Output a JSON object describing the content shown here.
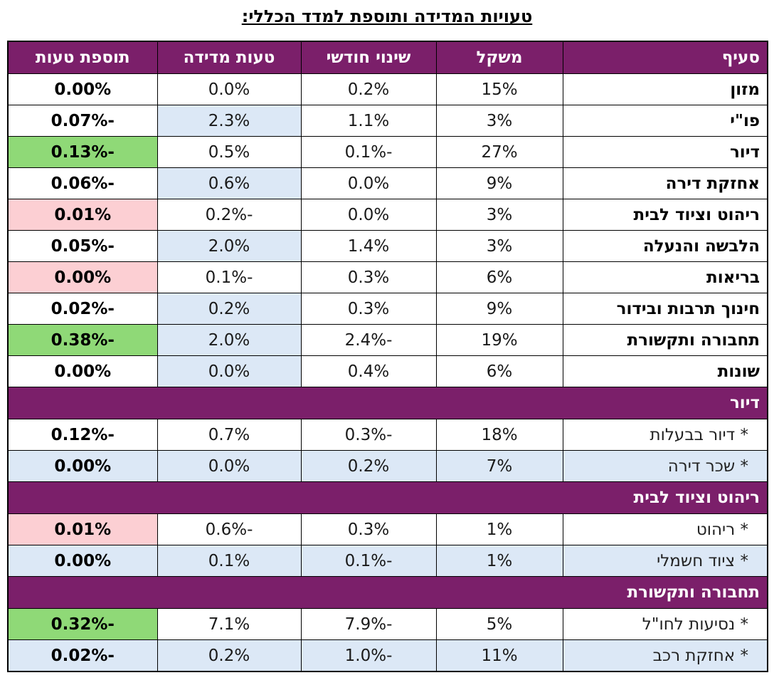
{
  "title": "טעויות המדידה ותוספת למדד הכללי:",
  "headers": {
    "item": "סעיף",
    "weight": "משקל",
    "monthly_change": "שינוי חודשי",
    "measurement_error": "טעות מדידה",
    "error_addition": "תוספת טעות"
  },
  "colors": {
    "header_bg": "#7b1f6a",
    "row_blue": "#dce8f6",
    "highlight_green": "#8fd977",
    "highlight_pink": "#fccfd3"
  },
  "rows": [
    {
      "item": "מזון",
      "weight": "15%",
      "change": "0.2%",
      "error": "0.0%",
      "addition": "0.00%",
      "err_bg": "w",
      "add_bg": "none"
    },
    {
      "item": "פו\"י",
      "weight": "3%",
      "change": "1.1%",
      "error": "2.3%",
      "addition": "-0.07%",
      "err_bg": "b",
      "add_bg": "none"
    },
    {
      "item": "דיור",
      "weight": "27%",
      "change": "-0.1%",
      "error": "0.5%",
      "addition": "-0.13%",
      "err_bg": "w",
      "add_bg": "green"
    },
    {
      "item": "אחזקת דירה",
      "weight": "9%",
      "change": "0.0%",
      "error": "0.6%",
      "addition": "-0.06%",
      "err_bg": "b",
      "add_bg": "none"
    },
    {
      "item": "ריהוט וציוד לבית",
      "weight": "3%",
      "change": "0.0%",
      "error": "-0.2%",
      "addition": "0.01%",
      "err_bg": "w",
      "add_bg": "pink"
    },
    {
      "item": "הלבשה והנעלה",
      "weight": "3%",
      "change": "1.4%",
      "error": "2.0%",
      "addition": "-0.05%",
      "err_bg": "b",
      "add_bg": "none"
    },
    {
      "item": "בריאות",
      "weight": "6%",
      "change": "0.3%",
      "error": "-0.1%",
      "addition": "0.00%",
      "err_bg": "w",
      "add_bg": "pink"
    },
    {
      "item": "חינוך תרבות ובידור",
      "weight": "9%",
      "change": "0.3%",
      "error": "0.2%",
      "addition": "-0.02%",
      "err_bg": "b",
      "add_bg": "none"
    },
    {
      "item": "תחבורה ותקשורת",
      "weight": "19%",
      "change": "-2.4%",
      "error": "2.0%",
      "addition": "-0.38%",
      "err_bg": "b",
      "add_bg": "green"
    },
    {
      "item": "שונות",
      "weight": "6%",
      "change": "0.4%",
      "error": "0.0%",
      "addition": "0.00%",
      "err_bg": "b",
      "add_bg": "none"
    }
  ],
  "sections": [
    {
      "title": "דיור",
      "rows": [
        {
          "item": "* דיור בבעלות",
          "weight": "18%",
          "change": "-0.3%",
          "error": "0.7%",
          "addition": "-0.12%",
          "row_bg": "w",
          "add_bg": "none"
        },
        {
          "item": "* שכר דירה",
          "weight": "7%",
          "change": "0.2%",
          "error": "0.0%",
          "addition": "0.00%",
          "row_bg": "b",
          "add_bg": "none"
        }
      ]
    },
    {
      "title": "ריהוט וציוד לבית",
      "rows": [
        {
          "item": "* ריהוט",
          "weight": "1%",
          "change": "0.3%",
          "error": "-0.6%",
          "addition": "0.01%",
          "row_bg": "w",
          "add_bg": "pink"
        },
        {
          "item": "* ציוד חשמלי",
          "weight": "1%",
          "change": "-0.1%",
          "error": "0.1%",
          "addition": "0.00%",
          "row_bg": "b",
          "add_bg": "none"
        }
      ]
    },
    {
      "title": "תחבורה ותקשורת",
      "rows": [
        {
          "item": "* נסיעות לחו\"ל",
          "weight": "5%",
          "change": "-7.9%",
          "error": "7.1%",
          "addition": "-0.32%",
          "row_bg": "w",
          "add_bg": "green"
        },
        {
          "item": "* אחזקת רכב",
          "weight": "11%",
          "change": "-1.0%",
          "error": "0.2%",
          "addition": "-0.02%",
          "row_bg": "b",
          "add_bg": "none"
        }
      ]
    }
  ]
}
